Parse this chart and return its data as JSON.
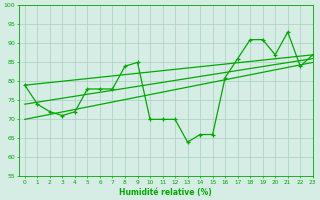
{
  "x_main": [
    0,
    1,
    2,
    3,
    4,
    5,
    6,
    7,
    8,
    9,
    10,
    11,
    12,
    13,
    14,
    15,
    16,
    17,
    18,
    19,
    20,
    21,
    22,
    23
  ],
  "y_main": [
    79,
    74,
    72,
    71,
    72,
    78,
    78,
    78,
    84,
    85,
    70,
    70,
    70,
    64,
    66,
    66,
    81,
    86,
    91,
    91,
    87,
    93,
    84,
    87
  ],
  "trend1_x": [
    0,
    23
  ],
  "trend1_y": [
    79,
    87
  ],
  "trend2_x": [
    0,
    23
  ],
  "trend2_y": [
    74,
    86
  ],
  "trend3_x": [
    0,
    23
  ],
  "trend3_y": [
    70,
    85
  ],
  "line_color": "#00aa00",
  "bg_color": "#d5ede4",
  "grid_color": "#a8cfc0",
  "xlabel": "Humidité relative (%)",
  "ylim": [
    55,
    100
  ],
  "xlim": [
    -0.5,
    23
  ],
  "yticks": [
    55,
    60,
    65,
    70,
    75,
    80,
    85,
    90,
    95,
    100
  ],
  "xticks": [
    0,
    1,
    2,
    3,
    4,
    5,
    6,
    7,
    8,
    9,
    10,
    11,
    12,
    13,
    14,
    15,
    16,
    17,
    18,
    19,
    20,
    21,
    22,
    23
  ],
  "figsize": [
    3.2,
    2.0
  ],
  "dpi": 100
}
